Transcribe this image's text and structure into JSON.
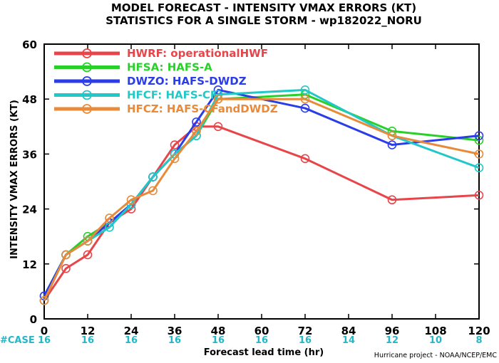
{
  "chart_data": {
    "type": "line",
    "title_line1": "MODEL FORECAST - INTENSITY VMAX ERRORS (KT)",
    "title_line2": "STATISTICS FOR A SINGLE STORM - wp182022_NORU",
    "xlabel": "Forecast lead time (hr)",
    "ylabel": "INTENSITY VMAX ERRORS (KT)",
    "xlim": [
      0,
      120
    ],
    "ylim": [
      0,
      60
    ],
    "xticks": [
      0,
      12,
      24,
      36,
      48,
      60,
      72,
      84,
      96,
      108,
      120
    ],
    "yticks": [
      0,
      12,
      24,
      36,
      48,
      60
    ],
    "x": [
      0,
      6,
      12,
      18,
      24,
      30,
      36,
      42,
      48,
      72,
      96,
      120
    ],
    "series": [
      {
        "name": "HWRF: operationalHWF",
        "color": "#e8454a",
        "values": [
          4,
          11,
          14,
          21,
          24,
          31,
          38,
          42,
          42,
          35,
          26,
          27
        ]
      },
      {
        "name": "HFSA: HAFS-A",
        "color": "#2ad02a",
        "values": [
          5,
          14,
          18,
          21,
          25,
          31,
          36,
          40,
          48,
          49,
          41,
          39
        ]
      },
      {
        "name": "DWZO: HAFS-DWDZ",
        "color": "#2b3de8",
        "values": [
          5,
          14,
          17,
          21,
          25,
          31,
          36,
          43,
          50,
          46,
          38,
          40
        ]
      },
      {
        "name": "HFCF: HAFS-CF",
        "color": "#22c8c8",
        "values": [
          4,
          14,
          17,
          20,
          25,
          31,
          36,
          40,
          49,
          50,
          40,
          33
        ]
      },
      {
        "name": "HFCZ: HAFS-CFandDWDZ",
        "color": "#e88a3a",
        "values": [
          4,
          14,
          17,
          22,
          26,
          28,
          35,
          41,
          48,
          48,
          40,
          36
        ]
      }
    ],
    "case_label": "#CASE",
    "case_x": [
      0,
      12,
      24,
      36,
      48,
      60,
      72,
      84,
      96,
      108,
      120
    ],
    "case_counts": [
      "16",
      "16",
      "16",
      "16",
      "16",
      "16",
      "16",
      "14",
      "12",
      "10",
      "8"
    ],
    "grid": false,
    "legend_position": "top-left"
  },
  "credit": "Hurricane project - NOAA/NCEP/EMC"
}
